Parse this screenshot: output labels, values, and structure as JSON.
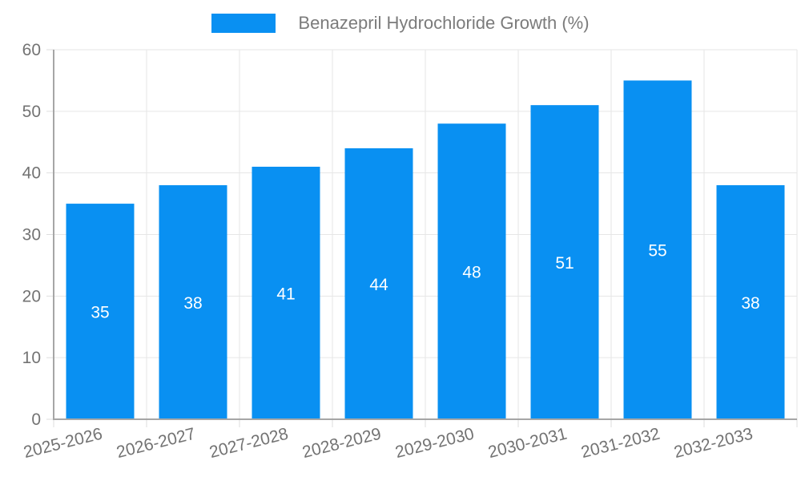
{
  "legend": {
    "label": "Benazepril Hydrochloride Growth (%)"
  },
  "colors": {
    "bar": "#0990f2",
    "axis": "#a6a6a6",
    "grid": "#e6e6e6",
    "tick": "#dedede",
    "text": "#737373",
    "value_label": "#ffffff"
  },
  "chart_data": {
    "type": "bar",
    "categories": [
      "2025-2026",
      "2026-2027",
      "2027-2028",
      "2028-2029",
      "2029-2030",
      "2030-2031",
      "2031-2032",
      "2032-2033"
    ],
    "values": [
      35,
      38,
      41,
      44,
      48,
      51,
      55,
      38
    ],
    "title": "Benazepril Hydrochloride Growth (%)",
    "xlabel": "",
    "ylabel": "",
    "ylim": [
      0,
      60
    ],
    "ytick_step": 10,
    "yticks": [
      0,
      10,
      20,
      30,
      40,
      50,
      60
    ],
    "grid": true,
    "legend_position": "top-center",
    "bar_value_labels": "inside-center",
    "x_label_rotation_deg": -14
  }
}
